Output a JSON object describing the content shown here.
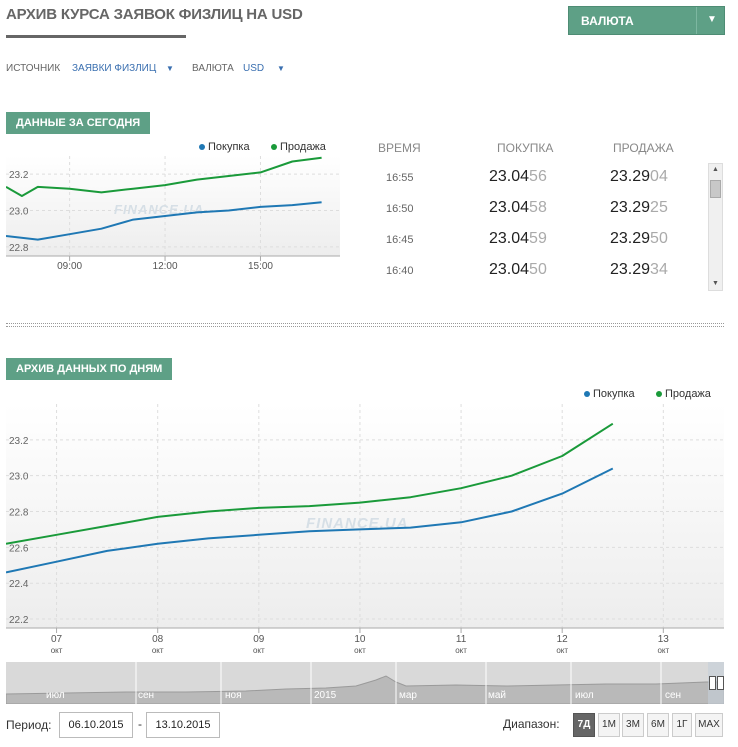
{
  "header": {
    "title": "АРХИВ КУРСА ЗАЯВОК ФИЗЛИЦ НА USD",
    "currency_button": "ВАЛЮТА"
  },
  "filters": {
    "source_label": "ИСТОЧНИК",
    "source_value": "ЗАЯВКИ ФИЗЛИЦ",
    "currency_label": "ВАЛЮТА",
    "currency_value": "USD"
  },
  "today": {
    "section_label": "ДАННЫЕ ЗА СЕГОДНЯ",
    "legend_buy": "Покупка",
    "legend_sell": "Продажа",
    "watermark": "FINANCE.UA",
    "columns": {
      "time": "ВРЕМЯ",
      "buy": "ПОКУПКА",
      "sell": "ПРОДАЖА"
    },
    "rows": [
      {
        "time": "16:55",
        "buy_main": "23.04",
        "buy_tail": "56",
        "sell_main": "23.29",
        "sell_tail": "04"
      },
      {
        "time": "16:50",
        "buy_main": "23.04",
        "buy_tail": "58",
        "sell_main": "23.29",
        "sell_tail": "25"
      },
      {
        "time": "16:45",
        "buy_main": "23.04",
        "buy_tail": "59",
        "sell_main": "23.29",
        "sell_tail": "50"
      },
      {
        "time": "16:40",
        "buy_main": "23.04",
        "buy_tail": "50",
        "sell_main": "23.29",
        "sell_tail": "34"
      }
    ]
  },
  "archive": {
    "section_label": "АРХИВ ДАННЫХ ПО ДНЯМ",
    "legend_buy": "Покупка",
    "legend_sell": "Продажа",
    "watermark": "FINANCE.UA",
    "navigator_labels": [
      "июл",
      "сен",
      "ноя",
      "2015",
      "мар",
      "май",
      "июл",
      "сен"
    ]
  },
  "controls": {
    "period_label": "Период:",
    "date_from": "06.10.2015",
    "date_to": "13.10.2015",
    "range_label": "Диапазон:",
    "ranges": [
      "7Д",
      "1M",
      "3M",
      "6M",
      "1Г",
      "MAX"
    ]
  },
  "chart_data": [
    {
      "type": "line",
      "colors": {
        "buy": "#1f78b4",
        "sell": "#1a9a3a"
      },
      "x_ticks": [
        "09:00",
        "12:00",
        "15:00"
      ],
      "y_ticks": [
        22.8,
        23.0,
        23.2
      ],
      "ylim": [
        22.75,
        23.3
      ],
      "xlim": [
        7.0,
        17.5
      ],
      "grid": true,
      "legend": "top-right",
      "series": [
        {
          "name": "Покупка",
          "x": [
            7.0,
            8.0,
            9.0,
            10.0,
            11.0,
            12.0,
            13.0,
            14.0,
            15.0,
            16.0,
            16.92
          ],
          "values": [
            22.86,
            22.84,
            22.87,
            22.9,
            22.95,
            22.97,
            22.99,
            23.0,
            23.02,
            23.03,
            23.0456
          ]
        },
        {
          "name": "Продажа",
          "x": [
            7.0,
            7.5,
            8.0,
            9.0,
            10.0,
            11.0,
            12.0,
            13.0,
            14.0,
            15.0,
            16.0,
            16.92
          ],
          "values": [
            23.13,
            23.08,
            23.13,
            23.12,
            23.1,
            23.12,
            23.14,
            23.17,
            23.19,
            23.21,
            23.27,
            23.2904
          ]
        }
      ]
    },
    {
      "type": "line",
      "colors": {
        "buy": "#1f78b4",
        "sell": "#1a9a3a"
      },
      "categories": [
        "07 окт",
        "08 окт",
        "09 окт",
        "10 окт",
        "11 окт",
        "12 окт",
        "13 окт"
      ],
      "x_ticks": [
        {
          "day": "07",
          "month": "окт"
        },
        {
          "day": "08",
          "month": "окт"
        },
        {
          "day": "09",
          "month": "окт"
        },
        {
          "day": "10",
          "month": "окт"
        },
        {
          "day": "11",
          "month": "окт"
        },
        {
          "day": "12",
          "month": "окт"
        },
        {
          "day": "13",
          "month": "окт"
        }
      ],
      "y_ticks": [
        22.2,
        22.4,
        22.6,
        22.8,
        23.0,
        23.2
      ],
      "ylim": [
        22.15,
        23.4
      ],
      "xlim": [
        6.5,
        13.6
      ],
      "grid": true,
      "legend": "top-right",
      "series": [
        {
          "name": "Покупка",
          "x": [
            6.5,
            7.0,
            7.5,
            8.0,
            8.5,
            9.0,
            9.5,
            10.0,
            10.5,
            11.0,
            11.5,
            12.0,
            12.5
          ],
          "values": [
            22.46,
            22.52,
            22.58,
            22.62,
            22.65,
            22.67,
            22.69,
            22.7,
            22.71,
            22.74,
            22.8,
            22.9,
            23.04
          ]
        },
        {
          "name": "Продажа",
          "x": [
            6.5,
            7.0,
            7.5,
            8.0,
            8.5,
            9.0,
            9.5,
            10.0,
            10.5,
            11.0,
            11.5,
            12.0,
            12.5
          ],
          "values": [
            22.62,
            22.67,
            22.72,
            22.77,
            22.8,
            22.82,
            22.83,
            22.85,
            22.88,
            22.93,
            23.0,
            23.11,
            23.29
          ]
        }
      ]
    }
  ]
}
